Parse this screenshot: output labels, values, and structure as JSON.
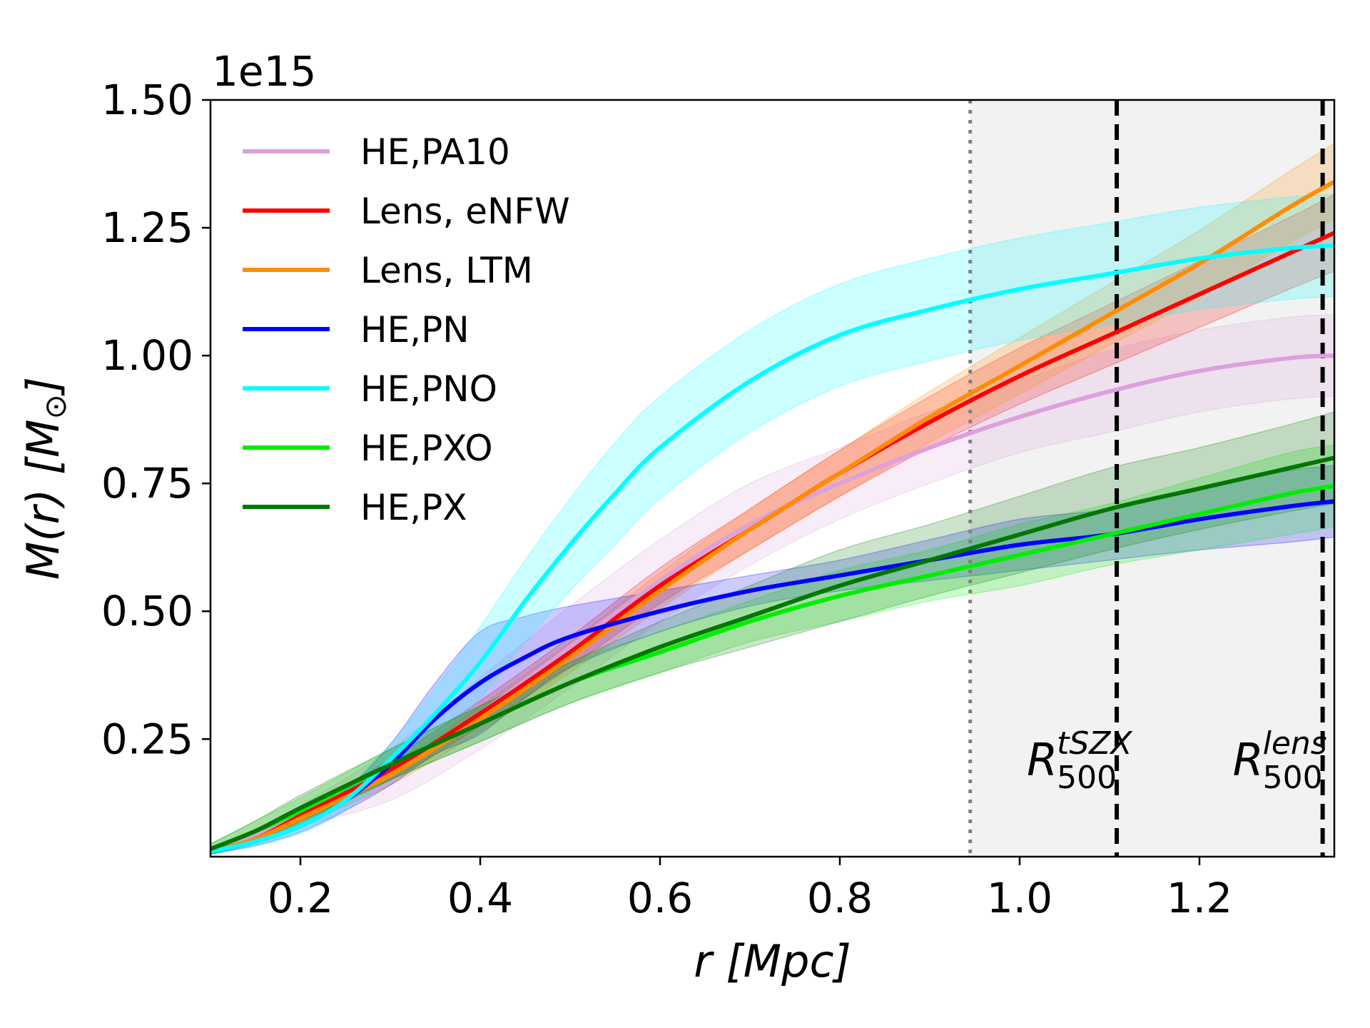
{
  "chart_data": {
    "type": "line",
    "title": "",
    "xlabel_prefix": "r",
    "xlabel_units": "[Mpc]",
    "ylabel": "M(r) [M",
    "ylabel_sun": "⊙",
    "ylabel_close": "]",
    "offset_text": "1e15",
    "xlim": [
      0.1,
      1.35
    ],
    "ylim": [
      0.02,
      1.5
    ],
    "x_ticks": [
      0.2,
      0.4,
      0.6,
      0.8,
      1.0,
      1.2
    ],
    "x_tick_labels": [
      "0.2",
      "0.4",
      "0.6",
      "0.8",
      "1.0",
      "1.2"
    ],
    "y_ticks": [
      0.25,
      0.5,
      0.75,
      1.0,
      1.25,
      1.5
    ],
    "y_tick_labels": [
      "0.25",
      "0.50",
      "0.75",
      "1.00",
      "1.25",
      "1.50"
    ],
    "shaded_region": {
      "from": 0.945,
      "to": 1.35,
      "color": "#f2f2f2"
    },
    "vlines": [
      {
        "name": "dotted",
        "x": 0.945,
        "style": "dotted",
        "color": "#808080"
      },
      {
        "name": "r500-tszx",
        "x": 1.108,
        "style": "dashed",
        "color": "#000000"
      },
      {
        "name": "r500-lens",
        "x": 1.337,
        "style": "dashed",
        "color": "#000000"
      }
    ],
    "annotations": [
      {
        "base": "R",
        "sup": "tSZX",
        "sub": "500",
        "x": 1.008,
        "y": 0.21
      },
      {
        "base": "R",
        "sup": "lens",
        "sub": "500",
        "x": 1.237,
        "y": 0.21
      }
    ],
    "legend_position": "upper-left",
    "series": [
      {
        "name": "HE,PA10",
        "color": "#dda0dd",
        "x": [
          0.1,
          0.15,
          0.2,
          0.3,
          0.4,
          0.5,
          0.6,
          0.7,
          0.8,
          0.9,
          1.0,
          1.1,
          1.2,
          1.3,
          1.35
        ],
        "y": [
          0.03,
          0.06,
          0.1,
          0.18,
          0.3,
          0.43,
          0.56,
          0.67,
          0.75,
          0.82,
          0.88,
          0.93,
          0.97,
          0.995,
          1.0
        ],
        "err": [
          0.005,
          0.01,
          0.02,
          0.05,
          0.07,
          0.08,
          0.08,
          0.08,
          0.07,
          0.07,
          0.07,
          0.08,
          0.08,
          0.08,
          0.08
        ]
      },
      {
        "name": "Lens, eNFW",
        "color": "#ff0000",
        "x": [
          0.1,
          0.15,
          0.2,
          0.3,
          0.4,
          0.5,
          0.6,
          0.7,
          0.8,
          0.9,
          1.0,
          1.1,
          1.2,
          1.3,
          1.35
        ],
        "y": [
          0.03,
          0.055,
          0.1,
          0.19,
          0.3,
          0.42,
          0.55,
          0.66,
          0.77,
          0.87,
          0.96,
          1.04,
          1.12,
          1.2,
          1.24
        ],
        "err": [
          0.005,
          0.008,
          0.012,
          0.02,
          0.025,
          0.03,
          0.035,
          0.04,
          0.045,
          0.05,
          0.055,
          0.06,
          0.065,
          0.07,
          0.075
        ]
      },
      {
        "name": "Lens, LTM",
        "color": "#ff8c00",
        "x": [
          0.1,
          0.15,
          0.2,
          0.3,
          0.4,
          0.5,
          0.6,
          0.7,
          0.8,
          0.9,
          1.0,
          1.1,
          1.2,
          1.3,
          1.35
        ],
        "y": [
          0.03,
          0.055,
          0.095,
          0.18,
          0.29,
          0.41,
          0.54,
          0.66,
          0.77,
          0.88,
          0.98,
          1.08,
          1.18,
          1.29,
          1.34
        ],
        "err": [
          0.005,
          0.008,
          0.012,
          0.02,
          0.025,
          0.03,
          0.035,
          0.04,
          0.045,
          0.05,
          0.055,
          0.06,
          0.065,
          0.07,
          0.075
        ]
      },
      {
        "name": "HE,PN",
        "color": "#0000ff",
        "x": [
          0.1,
          0.15,
          0.2,
          0.25,
          0.3,
          0.35,
          0.4,
          0.45,
          0.5,
          0.6,
          0.7,
          0.8,
          0.9,
          1.0,
          1.1,
          1.2,
          1.3,
          1.35
        ],
        "y": [
          0.03,
          0.05,
          0.08,
          0.13,
          0.2,
          0.29,
          0.36,
          0.41,
          0.45,
          0.5,
          0.54,
          0.57,
          0.6,
          0.63,
          0.65,
          0.68,
          0.705,
          0.715
        ],
        "err": [
          0.005,
          0.008,
          0.012,
          0.02,
          0.04,
          0.07,
          0.1,
          0.08,
          0.06,
          0.04,
          0.03,
          0.03,
          0.04,
          0.05,
          0.05,
          0.06,
          0.07,
          0.07
        ]
      },
      {
        "name": "HE,PNO",
        "color": "#00ffff",
        "x": [
          0.1,
          0.15,
          0.2,
          0.25,
          0.3,
          0.35,
          0.4,
          0.45,
          0.5,
          0.55,
          0.6,
          0.7,
          0.8,
          0.9,
          1.0,
          1.1,
          1.2,
          1.3,
          1.35
        ],
        "y": [
          0.03,
          0.05,
          0.08,
          0.13,
          0.21,
          0.3,
          0.4,
          0.52,
          0.63,
          0.73,
          0.82,
          0.95,
          1.04,
          1.09,
          1.13,
          1.16,
          1.19,
          1.21,
          1.215
        ],
        "err": [
          0.005,
          0.01,
          0.015,
          0.02,
          0.03,
          0.05,
          0.07,
          0.08,
          0.09,
          0.1,
          0.1,
          0.1,
          0.1,
          0.1,
          0.1,
          0.1,
          0.1,
          0.1,
          0.1
        ]
      },
      {
        "name": "HE,PXO",
        "color": "#00ee00",
        "x": [
          0.1,
          0.15,
          0.2,
          0.3,
          0.4,
          0.5,
          0.6,
          0.7,
          0.8,
          0.9,
          1.0,
          1.1,
          1.2,
          1.3,
          1.35
        ],
        "y": [
          0.035,
          0.07,
          0.11,
          0.2,
          0.28,
          0.36,
          0.42,
          0.48,
          0.53,
          0.57,
          0.61,
          0.65,
          0.69,
          0.73,
          0.745
        ],
        "err": [
          0.01,
          0.02,
          0.025,
          0.03,
          0.035,
          0.04,
          0.04,
          0.04,
          0.05,
          0.05,
          0.06,
          0.06,
          0.07,
          0.08,
          0.08
        ]
      },
      {
        "name": "HE,PX",
        "color": "#007700",
        "x": [
          0.1,
          0.15,
          0.2,
          0.3,
          0.4,
          0.5,
          0.6,
          0.7,
          0.8,
          0.9,
          1.0,
          1.1,
          1.2,
          1.3,
          1.35
        ],
        "y": [
          0.035,
          0.07,
          0.115,
          0.2,
          0.28,
          0.36,
          0.43,
          0.49,
          0.55,
          0.6,
          0.65,
          0.7,
          0.74,
          0.78,
          0.8
        ],
        "err": [
          0.01,
          0.02,
          0.025,
          0.03,
          0.035,
          0.04,
          0.05,
          0.06,
          0.07,
          0.07,
          0.075,
          0.08,
          0.08,
          0.085,
          0.09
        ]
      }
    ]
  }
}
